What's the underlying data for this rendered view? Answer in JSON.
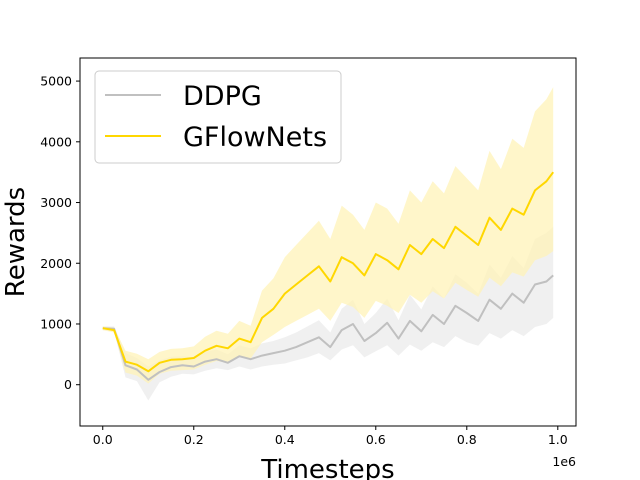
{
  "chart_data": {
    "type": "line",
    "title": "",
    "xlabel": "Timesteps",
    "ylabel": "Rewards",
    "x_offset_label": "1e6",
    "xlim": [
      -0.05,
      1.04
    ],
    "ylim": [
      -680,
      5380
    ],
    "x_ticks": [
      0.0,
      0.2,
      0.4,
      0.6,
      0.8,
      1.0
    ],
    "x_tick_labels": [
      "0.0",
      "0.2",
      "0.4",
      "0.6",
      "0.8",
      "1.0"
    ],
    "y_ticks": [
      0,
      1000,
      2000,
      3000,
      4000,
      5000
    ],
    "y_tick_labels": [
      "0",
      "1000",
      "2000",
      "3000",
      "4000",
      "5000"
    ],
    "grid": false,
    "legend_position": "top-left",
    "x": [
      0.0,
      0.025,
      0.05,
      0.075,
      0.1,
      0.125,
      0.15,
      0.175,
      0.2,
      0.225,
      0.25,
      0.275,
      0.3,
      0.325,
      0.35,
      0.375,
      0.4,
      0.425,
      0.45,
      0.475,
      0.5,
      0.525,
      0.55,
      0.575,
      0.6,
      0.625,
      0.65,
      0.675,
      0.7,
      0.725,
      0.75,
      0.775,
      0.8,
      0.825,
      0.85,
      0.875,
      0.9,
      0.925,
      0.95,
      0.975,
      0.99
    ],
    "series": [
      {
        "name": "DDPG",
        "color": "#c0c0c0",
        "band_color": "#ebebeb",
        "values": [
          930,
          920,
          320,
          250,
          80,
          210,
          290,
          320,
          300,
          380,
          420,
          360,
          470,
          420,
          480,
          520,
          560,
          620,
          700,
          780,
          620,
          900,
          1000,
          720,
          850,
          1020,
          760,
          1050,
          880,
          1150,
          1000,
          1300,
          1180,
          1050,
          1400,
          1250,
          1500,
          1350,
          1650,
          1700,
          1800
        ],
        "lower": [
          900,
          880,
          120,
          60,
          -260,
          40,
          130,
          180,
          170,
          230,
          270,
          240,
          300,
          250,
          300,
          330,
          350,
          400,
          450,
          520,
          400,
          580,
          650,
          450,
          550,
          650,
          480,
          660,
          560,
          700,
          620,
          800,
          700,
          640,
          850,
          760,
          900,
          800,
          950,
          1000,
          1100
        ],
        "upper": [
          960,
          960,
          520,
          440,
          300,
          400,
          460,
          470,
          450,
          540,
          580,
          500,
          650,
          600,
          680,
          720,
          780,
          860,
          960,
          1060,
          860,
          1250,
          1400,
          1000,
          1180,
          1420,
          1060,
          1480,
          1240,
          1620,
          1420,
          1820,
          1680,
          1500,
          1980,
          1760,
          2120,
          1920,
          2400,
          2500,
          2600
        ]
      },
      {
        "name": "GFlowNets",
        "color": "#ffd700",
        "band_color": "#fff3b8",
        "values": [
          930,
          900,
          380,
          330,
          220,
          360,
          410,
          420,
          440,
          560,
          640,
          600,
          760,
          700,
          1100,
          1250,
          1500,
          1650,
          1800,
          1950,
          1700,
          2100,
          2000,
          1800,
          2150,
          2050,
          1900,
          2300,
          2150,
          2400,
          2250,
          2600,
          2450,
          2300,
          2750,
          2550,
          2900,
          2800,
          3200,
          3350,
          3500
        ],
        "lower": [
          900,
          860,
          200,
          150,
          20,
          180,
          230,
          240,
          250,
          330,
          390,
          360,
          470,
          430,
          700,
          820,
          950,
          1050,
          1150,
          1250,
          1050,
          1350,
          1280,
          1100,
          1380,
          1300,
          1180,
          1480,
          1350,
          1540,
          1420,
          1680,
          1560,
          1450,
          1760,
          1620,
          1850,
          1780,
          2050,
          2120,
          2200
        ],
        "upper": [
          960,
          940,
          560,
          510,
          420,
          540,
          590,
          600,
          630,
          790,
          890,
          840,
          1050,
          970,
          1550,
          1750,
          2100,
          2300,
          2500,
          2700,
          2400,
          2950,
          2800,
          2550,
          3000,
          2900,
          2650,
          3200,
          3000,
          3350,
          3150,
          3600,
          3400,
          3200,
          3850,
          3550,
          4050,
          3900,
          4500,
          4700,
          4900
        ]
      }
    ]
  }
}
